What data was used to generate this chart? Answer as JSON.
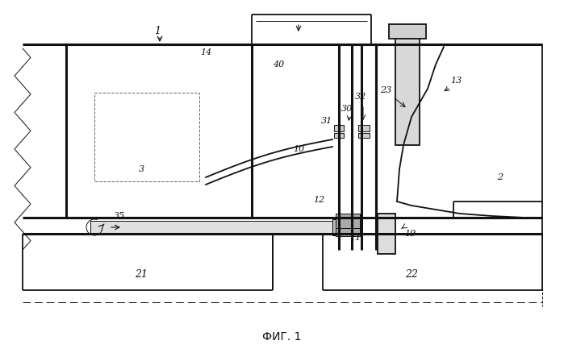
{
  "bg": "#ffffff",
  "lc": "#111111",
  "caption": "ФИГ. 1"
}
